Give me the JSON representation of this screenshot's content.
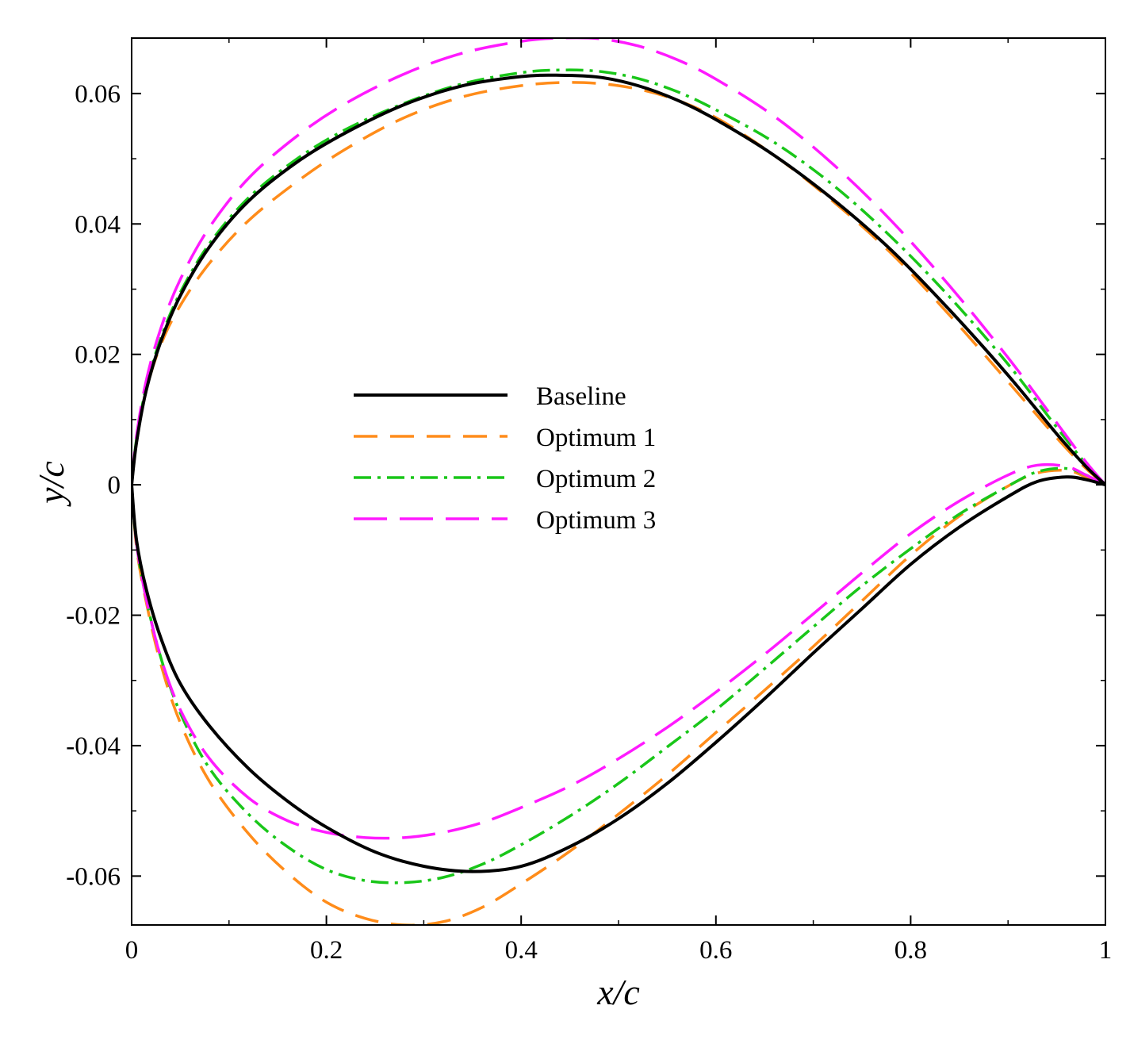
{
  "chart_data": {
    "type": "line",
    "title": "",
    "xlabel": "x/c",
    "ylabel": "y/c",
    "xlim": [
      0,
      1
    ],
    "ylim": [
      -0.0675,
      0.0685
    ],
    "x_ticks": [
      0,
      0.2,
      0.4,
      0.6,
      0.8,
      1
    ],
    "x_tick_labels": [
      "0",
      "0.2",
      "0.4",
      "0.6",
      "0.8",
      "1"
    ],
    "y_ticks": [
      -0.06,
      -0.04,
      -0.02,
      0,
      0.02,
      0.04,
      0.06
    ],
    "y_tick_labels": [
      "-0.06",
      "-0.04",
      "-0.02",
      "0",
      "0.02",
      "0.04",
      "0.06"
    ],
    "grid": false,
    "legend_position": "center-left",
    "series": [
      {
        "name": "Baseline",
        "color": "#000000",
        "style": "solid",
        "upper": [
          [
            0,
            0
          ],
          [
            0.005,
            0.0065
          ],
          [
            0.015,
            0.0145
          ],
          [
            0.03,
            0.022
          ],
          [
            0.05,
            0.029
          ],
          [
            0.08,
            0.0365
          ],
          [
            0.12,
            0.0435
          ],
          [
            0.17,
            0.0495
          ],
          [
            0.22,
            0.054
          ],
          [
            0.28,
            0.0583
          ],
          [
            0.34,
            0.0612
          ],
          [
            0.4,
            0.0626
          ],
          [
            0.44,
            0.0628
          ],
          [
            0.48,
            0.0625
          ],
          [
            0.52,
            0.0612
          ],
          [
            0.56,
            0.059
          ],
          [
            0.6,
            0.056
          ],
          [
            0.66,
            0.0505
          ],
          [
            0.72,
            0.0438
          ],
          [
            0.78,
            0.036
          ],
          [
            0.84,
            0.0268
          ],
          [
            0.9,
            0.0168
          ],
          [
            0.95,
            0.0078
          ],
          [
            0.98,
            0.0028
          ],
          [
            1.0,
            0
          ]
        ],
        "lower": [
          [
            0,
            0
          ],
          [
            0.005,
            -0.0085
          ],
          [
            0.015,
            -0.016
          ],
          [
            0.03,
            -0.0235
          ],
          [
            0.05,
            -0.0305
          ],
          [
            0.08,
            -0.037
          ],
          [
            0.12,
            -0.0435
          ],
          [
            0.16,
            -0.0485
          ],
          [
            0.2,
            -0.0525
          ],
          [
            0.25,
            -0.0563
          ],
          [
            0.3,
            -0.0585
          ],
          [
            0.35,
            -0.0593
          ],
          [
            0.4,
            -0.0585
          ],
          [
            0.45,
            -0.0555
          ],
          [
            0.5,
            -0.0512
          ],
          [
            0.55,
            -0.0458
          ],
          [
            0.6,
            -0.0395
          ],
          [
            0.65,
            -0.0328
          ],
          [
            0.7,
            -0.0258
          ],
          [
            0.75,
            -0.019
          ],
          [
            0.8,
            -0.0122
          ],
          [
            0.85,
            -0.0065
          ],
          [
            0.9,
            -0.0018
          ],
          [
            0.93,
            0.0005
          ],
          [
            0.96,
            0.0012
          ],
          [
            0.98,
            0.0008
          ],
          [
            1.0,
            0
          ]
        ]
      },
      {
        "name": "Optimum 1",
        "color": "#ff8c1a",
        "style": "dashed",
        "upper": [
          [
            0,
            0
          ],
          [
            0.005,
            0.0065
          ],
          [
            0.015,
            0.0145
          ],
          [
            0.03,
            0.0215
          ],
          [
            0.05,
            0.0275
          ],
          [
            0.08,
            0.034
          ],
          [
            0.12,
            0.0405
          ],
          [
            0.17,
            0.0465
          ],
          [
            0.22,
            0.0515
          ],
          [
            0.28,
            0.0563
          ],
          [
            0.34,
            0.0595
          ],
          [
            0.4,
            0.0612
          ],
          [
            0.45,
            0.0617
          ],
          [
            0.5,
            0.0612
          ],
          [
            0.55,
            0.0595
          ],
          [
            0.6,
            0.0563
          ],
          [
            0.66,
            0.0505
          ],
          [
            0.72,
            0.0435
          ],
          [
            0.78,
            0.0355
          ],
          [
            0.84,
            0.026
          ],
          [
            0.9,
            0.0158
          ],
          [
            0.95,
            0.0072
          ],
          [
            0.98,
            0.0025
          ],
          [
            1.0,
            0
          ]
        ],
        "lower": [
          [
            0,
            0
          ],
          [
            0.005,
            -0.0095
          ],
          [
            0.015,
            -0.018
          ],
          [
            0.03,
            -0.0275
          ],
          [
            0.05,
            -0.0365
          ],
          [
            0.08,
            -0.0455
          ],
          [
            0.12,
            -0.0535
          ],
          [
            0.16,
            -0.0595
          ],
          [
            0.2,
            -0.064
          ],
          [
            0.24,
            -0.0665
          ],
          [
            0.28,
            -0.0675
          ],
          [
            0.32,
            -0.067
          ],
          [
            0.36,
            -0.0648
          ],
          [
            0.4,
            -0.0612
          ],
          [
            0.45,
            -0.0562
          ],
          [
            0.5,
            -0.0505
          ],
          [
            0.55,
            -0.0445
          ],
          [
            0.6,
            -0.038
          ],
          [
            0.65,
            -0.0315
          ],
          [
            0.7,
            -0.0248
          ],
          [
            0.75,
            -0.0178
          ],
          [
            0.8,
            -0.0108
          ],
          [
            0.85,
            -0.0048
          ],
          [
            0.9,
            -0.0002
          ],
          [
            0.93,
            0.0018
          ],
          [
            0.96,
            0.0022
          ],
          [
            0.98,
            0.0012
          ],
          [
            1.0,
            0
          ]
        ]
      },
      {
        "name": "Optimum 2",
        "color": "#19c619",
        "style": "dashdot",
        "upper": [
          [
            0,
            0
          ],
          [
            0.005,
            0.007
          ],
          [
            0.015,
            0.015
          ],
          [
            0.03,
            0.0225
          ],
          [
            0.05,
            0.0295
          ],
          [
            0.08,
            0.037
          ],
          [
            0.12,
            0.044
          ],
          [
            0.17,
            0.05
          ],
          [
            0.22,
            0.0545
          ],
          [
            0.28,
            0.0585
          ],
          [
            0.34,
            0.0615
          ],
          [
            0.4,
            0.0632
          ],
          [
            0.44,
            0.0636
          ],
          [
            0.48,
            0.0634
          ],
          [
            0.52,
            0.0623
          ],
          [
            0.56,
            0.0603
          ],
          [
            0.6,
            0.0575
          ],
          [
            0.66,
            0.0525
          ],
          [
            0.72,
            0.046
          ],
          [
            0.78,
            0.038
          ],
          [
            0.84,
            0.0288
          ],
          [
            0.9,
            0.0185
          ],
          [
            0.95,
            0.0088
          ],
          [
            0.98,
            0.0032
          ],
          [
            1.0,
            0
          ]
        ],
        "lower": [
          [
            0,
            0
          ],
          [
            0.005,
            -0.009
          ],
          [
            0.015,
            -0.0175
          ],
          [
            0.03,
            -0.0265
          ],
          [
            0.05,
            -0.035
          ],
          [
            0.08,
            -0.0435
          ],
          [
            0.12,
            -0.0505
          ],
          [
            0.16,
            -0.0555
          ],
          [
            0.2,
            -0.059
          ],
          [
            0.24,
            -0.0607
          ],
          [
            0.28,
            -0.061
          ],
          [
            0.32,
            -0.0602
          ],
          [
            0.36,
            -0.0582
          ],
          [
            0.4,
            -0.0552
          ],
          [
            0.45,
            -0.0508
          ],
          [
            0.5,
            -0.0458
          ],
          [
            0.55,
            -0.0402
          ],
          [
            0.6,
            -0.0345
          ],
          [
            0.65,
            -0.0282
          ],
          [
            0.7,
            -0.0218
          ],
          [
            0.75,
            -0.0155
          ],
          [
            0.8,
            -0.0098
          ],
          [
            0.85,
            -0.0045
          ],
          [
            0.9,
            -0.0002
          ],
          [
            0.93,
            0.002
          ],
          [
            0.96,
            0.0025
          ],
          [
            0.98,
            0.0015
          ],
          [
            1.0,
            0
          ]
        ]
      },
      {
        "name": "Optimum 3",
        "color": "#ff1aff",
        "style": "longdash",
        "upper": [
          [
            0,
            0
          ],
          [
            0.005,
            0.0075
          ],
          [
            0.015,
            0.016
          ],
          [
            0.03,
            0.024
          ],
          [
            0.05,
            0.0315
          ],
          [
            0.08,
            0.0395
          ],
          [
            0.12,
            0.047
          ],
          [
            0.17,
            0.0535
          ],
          [
            0.22,
            0.0585
          ],
          [
            0.28,
            0.063
          ],
          [
            0.34,
            0.0662
          ],
          [
            0.4,
            0.068
          ],
          [
            0.44,
            0.0685
          ],
          [
            0.48,
            0.0684
          ],
          [
            0.52,
            0.0673
          ],
          [
            0.56,
            0.0652
          ],
          [
            0.6,
            0.0622
          ],
          [
            0.66,
            0.0565
          ],
          [
            0.72,
            0.0492
          ],
          [
            0.78,
            0.0405
          ],
          [
            0.84,
            0.0305
          ],
          [
            0.9,
            0.0195
          ],
          [
            0.95,
            0.0095
          ],
          [
            0.98,
            0.0035
          ],
          [
            1.0,
            0
          ]
        ],
        "lower": [
          [
            0,
            0
          ],
          [
            0.005,
            -0.009
          ],
          [
            0.015,
            -0.0175
          ],
          [
            0.03,
            -0.0265
          ],
          [
            0.05,
            -0.0345
          ],
          [
            0.08,
            -0.042
          ],
          [
            0.12,
            -0.048
          ],
          [
            0.16,
            -0.0515
          ],
          [
            0.2,
            -0.0533
          ],
          [
            0.24,
            -0.0541
          ],
          [
            0.28,
            -0.0541
          ],
          [
            0.32,
            -0.0533
          ],
          [
            0.36,
            -0.0518
          ],
          [
            0.4,
            -0.0495
          ],
          [
            0.45,
            -0.0462
          ],
          [
            0.5,
            -0.042
          ],
          [
            0.55,
            -0.0372
          ],
          [
            0.6,
            -0.0318
          ],
          [
            0.65,
            -0.026
          ],
          [
            0.7,
            -0.0198
          ],
          [
            0.75,
            -0.0135
          ],
          [
            0.8,
            -0.0075
          ],
          [
            0.85,
            -0.0025
          ],
          [
            0.9,
            0.0015
          ],
          [
            0.93,
            0.003
          ],
          [
            0.96,
            0.0028
          ],
          [
            0.98,
            0.0015
          ],
          [
            1.0,
            0
          ]
        ]
      }
    ]
  }
}
